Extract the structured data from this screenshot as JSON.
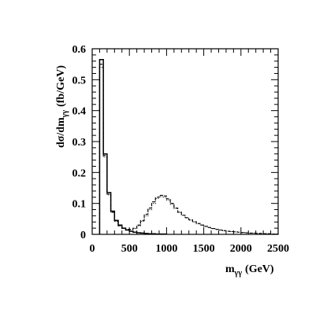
{
  "chart_data": {
    "type": "histogram",
    "xlabel": "m",
    "xlabel_sub": "γγ",
    "xlabel_unit": "(GeV)",
    "ylabel": "dσ/dm",
    "ylabel_sub": "γγ",
    "ylabel_unit": "(fb/GeV)",
    "xlim": [
      0,
      2500
    ],
    "ylim": [
      0,
      0.6
    ],
    "x_ticks": [
      0,
      500,
      1000,
      1500,
      2000,
      2500
    ],
    "y_ticks": [
      0,
      0.1,
      0.2,
      0.3,
      0.4,
      0.5,
      0.6
    ],
    "x_tick_labels": [
      "0",
      "500",
      "1000",
      "1500",
      "2000",
      "2500"
    ],
    "y_tick_labels": [
      "0",
      "0.1",
      "0.2",
      "0.3",
      "0.4",
      "0.5",
      "0.6"
    ],
    "grid": false,
    "bin_width": 50,
    "series": [
      {
        "style": "solid",
        "bin_edges_start": 100,
        "values": [
          0.565,
          0.26,
          0.135,
          0.075,
          0.045,
          0.03,
          0.02,
          0.014,
          0.01,
          0.007,
          0.005,
          0.004,
          0.003,
          0.002,
          0.002,
          0.001,
          0.001,
          0.001
        ]
      },
      {
        "style": "dashed",
        "bin_edges_start": 100,
        "values": [
          0.55,
          0.255,
          0.13,
          0.072,
          0.043,
          0.028,
          0.02,
          0.016,
          0.016,
          0.02,
          0.03,
          0.045,
          0.065,
          0.085,
          0.105,
          0.12,
          0.126,
          0.124,
          0.115,
          0.1,
          0.085,
          0.072,
          0.062,
          0.054,
          0.047,
          0.041,
          0.035,
          0.03,
          0.026,
          0.022,
          0.019,
          0.016,
          0.014,
          0.012,
          0.01,
          0.009,
          0.008,
          0.007,
          0.006,
          0.005,
          0.004,
          0.004,
          0.003,
          0.003,
          0.002,
          0.002,
          0.001,
          0.001
        ]
      },
      {
        "style": "dotted",
        "bin_edges_start": 100,
        "values": [
          0.54,
          0.25,
          0.128,
          0.07,
          0.042,
          0.027,
          0.019,
          0.015,
          0.015,
          0.019,
          0.028,
          0.042,
          0.06,
          0.08,
          0.1,
          0.116,
          0.122,
          0.12,
          0.111,
          0.098,
          0.084,
          0.071,
          0.061,
          0.053,
          0.046,
          0.04,
          0.034,
          0.03,
          0.026,
          0.022,
          0.019,
          0.016,
          0.014,
          0.012,
          0.01,
          0.009,
          0.008,
          0.007,
          0.006,
          0.005,
          0.004,
          0.004,
          0.003,
          0.003,
          0.002,
          0.002,
          0.001,
          0.001
        ]
      }
    ]
  }
}
